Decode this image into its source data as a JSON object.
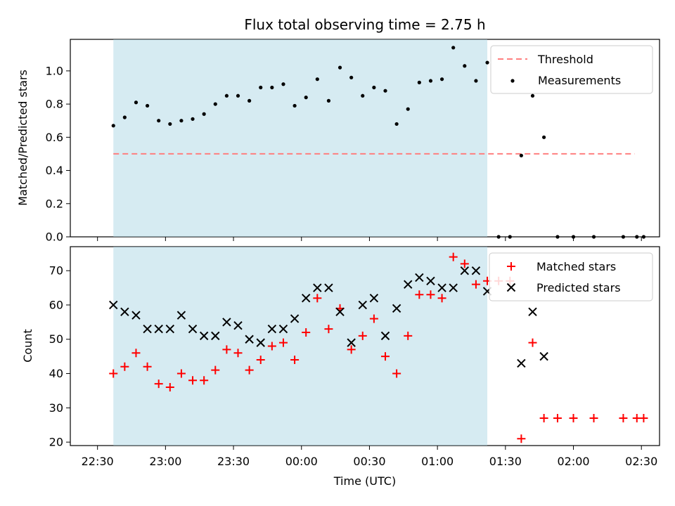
{
  "chart_data": {
    "title": "Flux total observing time = 2.75 h",
    "type": "scatter",
    "xlabel": "Time (UTC)",
    "xlim": [
      "22:18",
      "02:38"
    ],
    "x_tick_labels": [
      "22:30",
      "23:00",
      "23:30",
      "00:00",
      "00:30",
      "01:00",
      "01:30",
      "02:00",
      "02:30"
    ],
    "highlight_span": {
      "start": "22:37",
      "end": "01:22",
      "color": "#add8e6"
    },
    "top_panel": {
      "ylabel": "Matched/Predicted stars",
      "ylim": [
        0,
        1.19
      ],
      "y_ticks": [
        "0.0",
        "0.2",
        "0.4",
        "0.6",
        "0.8",
        "1.0"
      ],
      "legend_position": "upper right",
      "threshold": {
        "name": "Threshold",
        "value": 0.5,
        "x_start": "22:37",
        "x_end": "02:27",
        "color": "#ff7f7f"
      },
      "series": [
        {
          "name": "Measurements",
          "marker": "dot",
          "color": "#000000",
          "points": [
            [
              "22:37",
              0.67
            ],
            [
              "22:42",
              0.72
            ],
            [
              "22:47",
              0.81
            ],
            [
              "22:52",
              0.79
            ],
            [
              "22:57",
              0.7
            ],
            [
              "23:02",
              0.68
            ],
            [
              "23:07",
              0.7
            ],
            [
              "23:12",
              0.71
            ],
            [
              "23:17",
              0.74
            ],
            [
              "23:22",
              0.8
            ],
            [
              "23:27",
              0.85
            ],
            [
              "23:32",
              0.85
            ],
            [
              "23:37",
              0.82
            ],
            [
              "23:42",
              0.9
            ],
            [
              "23:47",
              0.9
            ],
            [
              "23:52",
              0.92
            ],
            [
              "23:57",
              0.79
            ],
            [
              "00:02",
              0.84
            ],
            [
              "00:07",
              0.95
            ],
            [
              "00:12",
              0.82
            ],
            [
              "00:17",
              1.02
            ],
            [
              "00:22",
              0.96
            ],
            [
              "00:27",
              0.85
            ],
            [
              "00:32",
              0.9
            ],
            [
              "00:37",
              0.88
            ],
            [
              "00:42",
              0.68
            ],
            [
              "00:47",
              0.77
            ],
            [
              "00:52",
              0.93
            ],
            [
              "00:57",
              0.94
            ],
            [
              "01:02",
              0.95
            ],
            [
              "01:07",
              1.14
            ],
            [
              "01:12",
              1.03
            ],
            [
              "01:17",
              0.94
            ],
            [
              "01:22",
              1.05
            ],
            [
              "01:27",
              0.0
            ],
            [
              "01:32",
              0.0
            ],
            [
              "01:37",
              0.49
            ],
            [
              "01:42",
              0.85
            ],
            [
              "01:47",
              0.6
            ],
            [
              "01:53",
              0.0
            ],
            [
              "02:00",
              0.0
            ],
            [
              "02:09",
              0.0
            ],
            [
              "02:22",
              0.0
            ],
            [
              "02:28",
              0.0
            ],
            [
              "02:31",
              0.0
            ]
          ]
        }
      ]
    },
    "bottom_panel": {
      "ylabel": "Count",
      "ylim": [
        19,
        77
      ],
      "y_ticks": [
        "20",
        "30",
        "40",
        "50",
        "60",
        "70"
      ],
      "legend_position": "upper right",
      "series": [
        {
          "name": "Matched stars",
          "marker": "plus",
          "color": "#ff0000",
          "points": [
            [
              "22:37",
              40
            ],
            [
              "22:42",
              42
            ],
            [
              "22:47",
              46
            ],
            [
              "22:52",
              42
            ],
            [
              "22:57",
              37
            ],
            [
              "23:02",
              36
            ],
            [
              "23:07",
              40
            ],
            [
              "23:12",
              38
            ],
            [
              "23:17",
              38
            ],
            [
              "23:22",
              41
            ],
            [
              "23:27",
              47
            ],
            [
              "23:32",
              46
            ],
            [
              "23:37",
              41
            ],
            [
              "23:42",
              44
            ],
            [
              "23:47",
              48
            ],
            [
              "23:52",
              49
            ],
            [
              "23:57",
              44
            ],
            [
              "00:02",
              52
            ],
            [
              "00:07",
              62
            ],
            [
              "00:12",
              53
            ],
            [
              "00:17",
              59
            ],
            [
              "00:22",
              47
            ],
            [
              "00:27",
              51
            ],
            [
              "00:32",
              56
            ],
            [
              "00:37",
              45
            ],
            [
              "00:42",
              40
            ],
            [
              "00:47",
              51
            ],
            [
              "00:52",
              63
            ],
            [
              "00:57",
              63
            ],
            [
              "01:02",
              62
            ],
            [
              "01:07",
              74
            ],
            [
              "01:12",
              72
            ],
            [
              "01:17",
              66
            ],
            [
              "01:22",
              67
            ],
            [
              "01:27",
              67
            ],
            [
              "01:32",
              67
            ],
            [
              "01:37",
              21
            ],
            [
              "01:42",
              49
            ],
            [
              "01:47",
              27
            ],
            [
              "01:53",
              27
            ],
            [
              "02:00",
              27
            ],
            [
              "02:09",
              27
            ],
            [
              "02:22",
              27
            ],
            [
              "02:28",
              27
            ],
            [
              "02:31",
              27
            ]
          ]
        },
        {
          "name": "Predicted stars",
          "marker": "x",
          "color": "#000000",
          "points": [
            [
              "22:37",
              60
            ],
            [
              "22:42",
              58
            ],
            [
              "22:47",
              57
            ],
            [
              "22:52",
              53
            ],
            [
              "22:57",
              53
            ],
            [
              "23:02",
              53
            ],
            [
              "23:07",
              57
            ],
            [
              "23:12",
              53
            ],
            [
              "23:17",
              51
            ],
            [
              "23:22",
              51
            ],
            [
              "23:27",
              55
            ],
            [
              "23:32",
              54
            ],
            [
              "23:37",
              50
            ],
            [
              "23:42",
              49
            ],
            [
              "23:47",
              53
            ],
            [
              "23:52",
              53
            ],
            [
              "23:57",
              56
            ],
            [
              "00:02",
              62
            ],
            [
              "00:07",
              65
            ],
            [
              "00:12",
              65
            ],
            [
              "00:17",
              58
            ],
            [
              "00:22",
              49
            ],
            [
              "00:27",
              60
            ],
            [
              "00:32",
              62
            ],
            [
              "00:37",
              51
            ],
            [
              "00:42",
              59
            ],
            [
              "00:47",
              66
            ],
            [
              "00:52",
              68
            ],
            [
              "00:57",
              67
            ],
            [
              "01:02",
              65
            ],
            [
              "01:07",
              65
            ],
            [
              "01:12",
              70
            ],
            [
              "01:17",
              70
            ],
            [
              "01:22",
              64
            ],
            [
              "01:37",
              43
            ],
            [
              "01:42",
              58
            ],
            [
              "01:47",
              45
            ]
          ]
        }
      ]
    }
  }
}
